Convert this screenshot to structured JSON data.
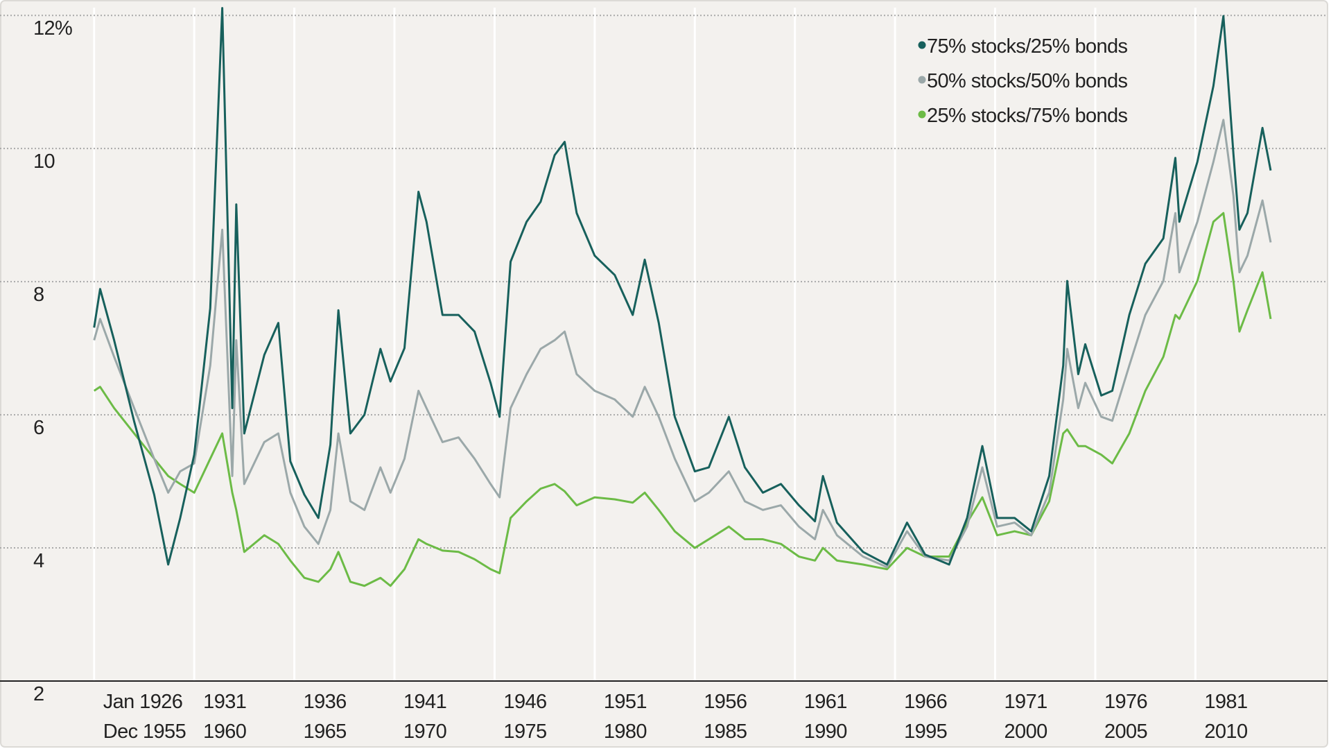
{
  "chart_data": {
    "type": "line",
    "x": [
      1926,
      1926.3,
      1927,
      1928,
      1929,
      1929.7,
      1930.3,
      1931,
      1931.8,
      1932.4,
      1932.9,
      1933.1,
      1933.5,
      1934.5,
      1935.2,
      1935.8,
      1936.5,
      1937.2,
      1937.8,
      1938.2,
      1938.8,
      1939.5,
      1940.3,
      1940.8,
      1941.5,
      1942.2,
      1942.6,
      1943.4,
      1944.2,
      1945.0,
      1945.8,
      1946.25,
      1946.8,
      1947.6,
      1948.3,
      1949.0,
      1949.5,
      1950.1,
      1951,
      1952,
      1952.9,
      1953.5,
      1954.2,
      1955,
      1956,
      1956.7,
      1957.7,
      1958.5,
      1959.4,
      1960.3,
      1961.2,
      1962,
      1962.4,
      1963.1,
      1964.4,
      1965.6,
      1966.6,
      1967.5,
      1968.7,
      1969.6,
      1970.36,
      1971.1,
      1971.97,
      1972.8,
      1973.7,
      1974.4,
      1974.6,
      1975.15,
      1975.5,
      1976.3,
      1976.85,
      1977.7,
      1978.5,
      1979.4,
      1980.0,
      1980.2,
      1981.1,
      1981.9,
      1982.4,
      1982.9,
      1983.2,
      1983.6,
      1984.35,
      1984.76
    ],
    "series": [
      {
        "name": "75% stocks/25% bonds",
        "color": "#17605c",
        "values": [
          7.31,
          7.89,
          7.12,
          5.9,
          4.8,
          3.75,
          4.45,
          5.4,
          7.6,
          12.11,
          6.1,
          9.16,
          5.72,
          6.9,
          7.38,
          5.3,
          4.8,
          4.45,
          5.55,
          7.57,
          5.72,
          6.0,
          6.99,
          6.5,
          7.0,
          9.35,
          8.9,
          7.5,
          7.5,
          7.25,
          6.48,
          5.97,
          8.3,
          8.9,
          9.2,
          9.9,
          10.1,
          9.03,
          8.39,
          8.1,
          7.5,
          8.33,
          7.38,
          5.97,
          5.15,
          5.21,
          5.97,
          5.21,
          4.83,
          4.96,
          4.64,
          4.4,
          5.08,
          4.38,
          3.94,
          3.75,
          4.38,
          3.9,
          3.75,
          4.45,
          5.53,
          4.45,
          4.45,
          4.25,
          5.08,
          6.74,
          8.01,
          6.61,
          7.06,
          6.29,
          6.36,
          7.5,
          8.27,
          8.65,
          9.86,
          8.9,
          9.8,
          10.94,
          11.99,
          9.92,
          8.78,
          9.03,
          10.31,
          9.67
        ]
      },
      {
        "name": "50% stocks/50% bonds",
        "color": "#9ba8a9",
        "values": [
          7.12,
          7.44,
          6.87,
          6.1,
          5.34,
          4.83,
          5.15,
          5.27,
          6.74,
          8.78,
          5.08,
          7.12,
          4.96,
          5.59,
          5.72,
          4.83,
          4.32,
          4.06,
          4.57,
          5.72,
          4.7,
          4.57,
          5.21,
          4.83,
          5.34,
          6.36,
          6.1,
          5.59,
          5.66,
          5.34,
          4.96,
          4.76,
          6.1,
          6.61,
          6.99,
          7.12,
          7.25,
          6.61,
          6.36,
          6.23,
          5.97,
          6.42,
          5.97,
          5.34,
          4.7,
          4.83,
          5.15,
          4.7,
          4.57,
          4.64,
          4.32,
          4.13,
          4.57,
          4.19,
          3.87,
          3.71,
          4.25,
          3.87,
          3.81,
          4.32,
          5.21,
          4.32,
          4.38,
          4.19,
          4.83,
          6.23,
          6.99,
          6.1,
          6.48,
          5.97,
          5.91,
          6.74,
          7.5,
          8.01,
          9.03,
          8.14,
          8.9,
          9.8,
          10.43,
          9.29,
          8.14,
          8.39,
          9.22,
          8.59
        ]
      },
      {
        "name": "25% stocks/75% bonds",
        "color": "#6cbb46",
        "values": [
          6.36,
          6.42,
          6.1,
          5.72,
          5.34,
          5.08,
          4.96,
          4.83,
          5.34,
          5.72,
          4.83,
          4.57,
          3.94,
          4.19,
          4.06,
          3.81,
          3.55,
          3.49,
          3.68,
          3.94,
          3.49,
          3.43,
          3.55,
          3.43,
          3.68,
          4.13,
          4.06,
          3.96,
          3.94,
          3.83,
          3.68,
          3.62,
          4.45,
          4.7,
          4.89,
          4.96,
          4.85,
          4.64,
          4.76,
          4.73,
          4.68,
          4.83,
          4.57,
          4.25,
          4.0,
          4.13,
          4.32,
          4.13,
          4.13,
          4.06,
          3.87,
          3.81,
          4.0,
          3.81,
          3.75,
          3.68,
          4.0,
          3.87,
          3.87,
          4.38,
          4.76,
          4.19,
          4.25,
          4.19,
          4.7,
          5.72,
          5.78,
          5.53,
          5.53,
          5.4,
          5.27,
          5.72,
          6.36,
          6.87,
          7.5,
          7.44,
          8.01,
          8.9,
          9.03,
          8.01,
          7.25,
          7.57,
          8.14,
          7.44
        ]
      }
    ],
    "xlim": [
      1921.3,
      1987.6
    ],
    "xticks": [
      {
        "value": 1926,
        "label": [
          "Jan 1926",
          "Dec 1955"
        ]
      },
      {
        "value": 1931,
        "label": [
          "1931",
          "1960"
        ]
      },
      {
        "value": 1936,
        "label": [
          "1936",
          "1965"
        ]
      },
      {
        "value": 1941,
        "label": [
          "1941",
          "1970"
        ]
      },
      {
        "value": 1946,
        "label": [
          "1946",
          "1975"
        ]
      },
      {
        "value": 1951,
        "label": [
          "1951",
          "1980"
        ]
      },
      {
        "value": 1956,
        "label": [
          "1956",
          "1985"
        ]
      },
      {
        "value": 1961,
        "label": [
          "1961",
          "1990"
        ]
      },
      {
        "value": 1966,
        "label": [
          "1966",
          "1995"
        ]
      },
      {
        "value": 1971,
        "label": [
          "1971",
          "2000"
        ]
      },
      {
        "value": 1976,
        "label": [
          "1976",
          "2005"
        ]
      },
      {
        "value": 1981,
        "label": [
          "1981",
          "2010"
        ]
      }
    ],
    "ylim": [
      2,
      12.2
    ],
    "yticks": [
      2,
      4,
      6,
      8,
      10,
      {
        "value": 12,
        "label": "12%"
      }
    ],
    "grid": true,
    "legend": "top-right"
  }
}
